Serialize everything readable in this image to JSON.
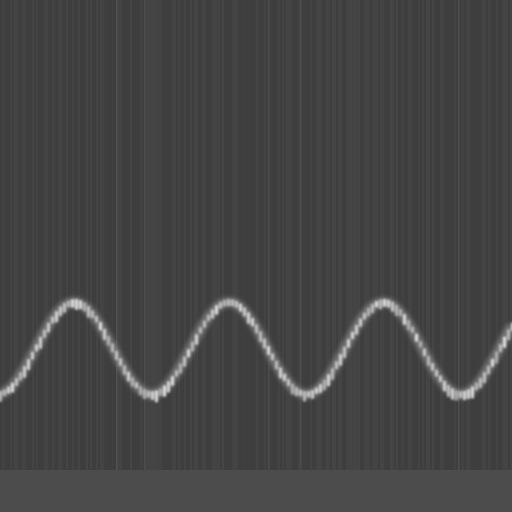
{
  "image": {
    "description_type": "spectrogram",
    "colors": {
      "background": "#404040",
      "noise_dark": "#3a3a3a",
      "noise_light": "#4a4a4a",
      "trace_core": "#e6e6e6",
      "trace_glow": "#9a9a9a",
      "bottom_band": "#4c4c4c"
    },
    "trace": {
      "shape": "sinusoid",
      "cycles_visible": 3.3,
      "period_fraction": 0.302,
      "phase_peak_fraction": 0.145,
      "amplitude_fraction": 0.09,
      "center_fraction": 0.68
    }
  }
}
